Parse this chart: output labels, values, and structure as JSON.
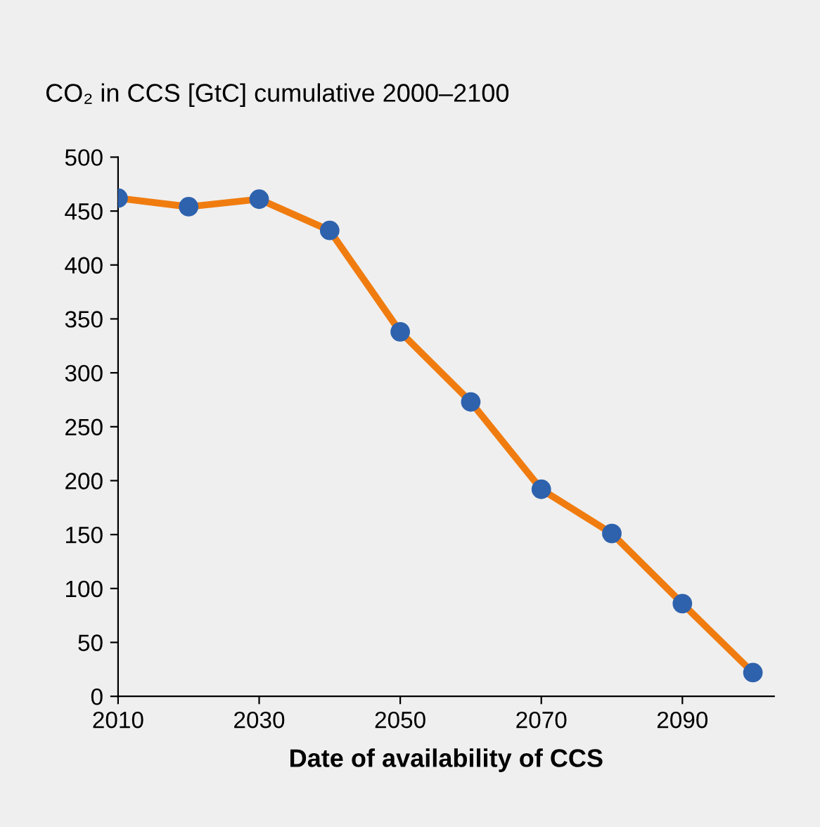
{
  "chart_data": {
    "type": "line",
    "title": "CO₂ in CCS [GtC] cumulative 2000–2100",
    "xlabel": "Date of availability of CCS",
    "x": [
      2010,
      2020,
      2030,
      2040,
      2050,
      2060,
      2070,
      2080,
      2090,
      2100
    ],
    "series": [
      {
        "color": "#f07c10",
        "values": [
          462,
          454,
          461,
          432,
          338,
          273,
          192,
          151,
          86,
          22
        ]
      }
    ],
    "marker": "circle",
    "line_style": "solid",
    "grid": false,
    "xlim": [
      2010,
      2103
    ],
    "xticks": [
      2010,
      2030,
      2050,
      2070,
      2090
    ],
    "ylim": [
      0,
      500
    ],
    "yticks": [
      0,
      50,
      100,
      150,
      200,
      250,
      300,
      350,
      400,
      450,
      500
    ]
  }
}
